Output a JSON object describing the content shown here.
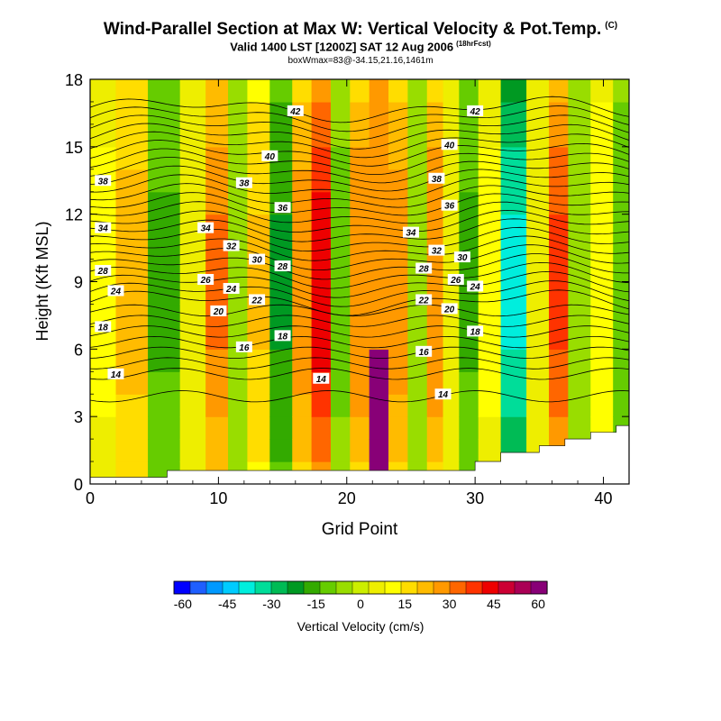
{
  "header": {
    "title": "Wind-Parallel Section at Max W: Vertical Velocity & Pot.Temp.",
    "copyright": "(C)",
    "valid": "Valid 1400 LST [1200Z] SAT 12 Aug 2006",
    "forecast": "(18hrFcst)",
    "box": "boxWmax=83@-34.15,21.16,1461m"
  },
  "chart_data": {
    "type": "heatmap",
    "title": "Wind-Parallel Section at Max W: Vertical Velocity & Pot.Temp.",
    "xlabel": "Grid Point",
    "ylabel": "Height (Kft MSL)",
    "xlim": [
      0,
      42
    ],
    "ylim": [
      0,
      18
    ],
    "x_ticks": [
      0,
      10,
      20,
      30,
      40
    ],
    "y_ticks": [
      0,
      3,
      6,
      9,
      12,
      15,
      18
    ],
    "colorbar": {
      "label": "Vertical Velocity (cm/s)",
      "ticks": [
        -60,
        -45,
        -30,
        -15,
        0,
        15,
        30,
        45,
        60
      ],
      "colors": [
        "#0000ff",
        "#1f5fff",
        "#0099ff",
        "#00ccff",
        "#00eedd",
        "#00dd99",
        "#00bb55",
        "#009922",
        "#33aa00",
        "#66cc00",
        "#99dd00",
        "#ccee00",
        "#eeee00",
        "#ffff00",
        "#ffdd00",
        "#ffbb00",
        "#ff9900",
        "#ff6600",
        "#ff3300",
        "#ee0000",
        "#cc0033",
        "#aa0055",
        "#880077"
      ]
    },
    "vertical_velocity_columns": [
      {
        "x": 1,
        "w": 10
      },
      {
        "x": 3,
        "w": 22
      },
      {
        "x": 6,
        "w": -15
      },
      {
        "x": 8,
        "w": 5
      },
      {
        "x": 10,
        "w": 32
      },
      {
        "x": 11.5,
        "w": -8
      },
      {
        "x": 13,
        "w": 20
      },
      {
        "x": 15,
        "w": -20
      },
      {
        "x": 16.5,
        "w": 28
      },
      {
        "x": 18,
        "w": 45
      },
      {
        "x": 19.5,
        "w": -10
      },
      {
        "x": 21,
        "w": 30
      },
      {
        "x": 22.5,
        "w": 83
      },
      {
        "x": 24,
        "w": 28
      },
      {
        "x": 25.5,
        "w": -5
      },
      {
        "x": 27,
        "w": 30
      },
      {
        "x": 28,
        "w": 8
      },
      {
        "x": 29.5,
        "w": -15
      },
      {
        "x": 31,
        "w": 10
      },
      {
        "x": 33,
        "w": -38
      },
      {
        "x": 35,
        "w": 5
      },
      {
        "x": 36.5,
        "w": 38
      },
      {
        "x": 38,
        "w": -5
      },
      {
        "x": 40,
        "w": 12
      },
      {
        "x": 41.5,
        "w": -12
      }
    ],
    "theta_contour_labels": [
      {
        "value": "14",
        "x": 2,
        "y": 4.9
      },
      {
        "value": "14",
        "x": 18,
        "y": 4.7
      },
      {
        "value": "14",
        "x": 27.5,
        "y": 4.0
      },
      {
        "value": "16",
        "x": 12,
        "y": 6.1
      },
      {
        "value": "16",
        "x": 26,
        "y": 5.9
      },
      {
        "value": "18",
        "x": 1,
        "y": 7.0
      },
      {
        "value": "18",
        "x": 15,
        "y": 6.6
      },
      {
        "value": "18",
        "x": 30,
        "y": 6.8
      },
      {
        "value": "20",
        "x": 10,
        "y": 7.7
      },
      {
        "value": "20",
        "x": 28,
        "y": 7.8
      },
      {
        "value": "22",
        "x": 13,
        "y": 8.2
      },
      {
        "value": "22",
        "x": 26,
        "y": 8.2
      },
      {
        "value": "24",
        "x": 2,
        "y": 8.6
      },
      {
        "value": "24",
        "x": 11,
        "y": 8.7
      },
      {
        "value": "24",
        "x": 30,
        "y": 8.8
      },
      {
        "value": "26",
        "x": 9,
        "y": 9.1
      },
      {
        "value": "26",
        "x": 28.5,
        "y": 9.1
      },
      {
        "value": "28",
        "x": 1,
        "y": 9.5
      },
      {
        "value": "28",
        "x": 15,
        "y": 9.7
      },
      {
        "value": "28",
        "x": 26,
        "y": 9.6
      },
      {
        "value": "30",
        "x": 13,
        "y": 10.0
      },
      {
        "value": "30",
        "x": 29,
        "y": 10.1
      },
      {
        "value": "32",
        "x": 11,
        "y": 10.6
      },
      {
        "value": "32",
        "x": 27,
        "y": 10.4
      },
      {
        "value": "34",
        "x": 1,
        "y": 11.4
      },
      {
        "value": "34",
        "x": 9,
        "y": 11.4
      },
      {
        "value": "34",
        "x": 25,
        "y": 11.2
      },
      {
        "value": "36",
        "x": 15,
        "y": 12.3
      },
      {
        "value": "36",
        "x": 28,
        "y": 12.4
      },
      {
        "value": "38",
        "x": 1,
        "y": 13.5
      },
      {
        "value": "38",
        "x": 12,
        "y": 13.4
      },
      {
        "value": "38",
        "x": 27,
        "y": 13.6
      },
      {
        "value": "40",
        "x": 14,
        "y": 14.6
      },
      {
        "value": "40",
        "x": 28,
        "y": 15.1
      },
      {
        "value": "42",
        "x": 16,
        "y": 16.6
      },
      {
        "value": "42",
        "x": 30,
        "y": 16.6
      }
    ],
    "terrain_height": [
      0.3,
      0.3,
      0.3,
      0.3,
      0.3,
      0.3,
      0.6,
      0.6,
      0.6,
      0.6,
      0.6,
      0.6,
      0.6,
      0.6,
      0.6,
      0.6,
      0.6,
      0.6,
      0.6,
      0.6,
      0.6,
      0.6,
      0.6,
      0.6,
      0.6,
      0.6,
      0.6,
      0.6,
      0.6,
      0.6,
      1.0,
      1.0,
      1.4,
      1.4,
      1.4,
      1.7,
      1.7,
      2.0,
      2.0,
      2.3,
      2.3,
      2.6,
      2.6
    ]
  }
}
